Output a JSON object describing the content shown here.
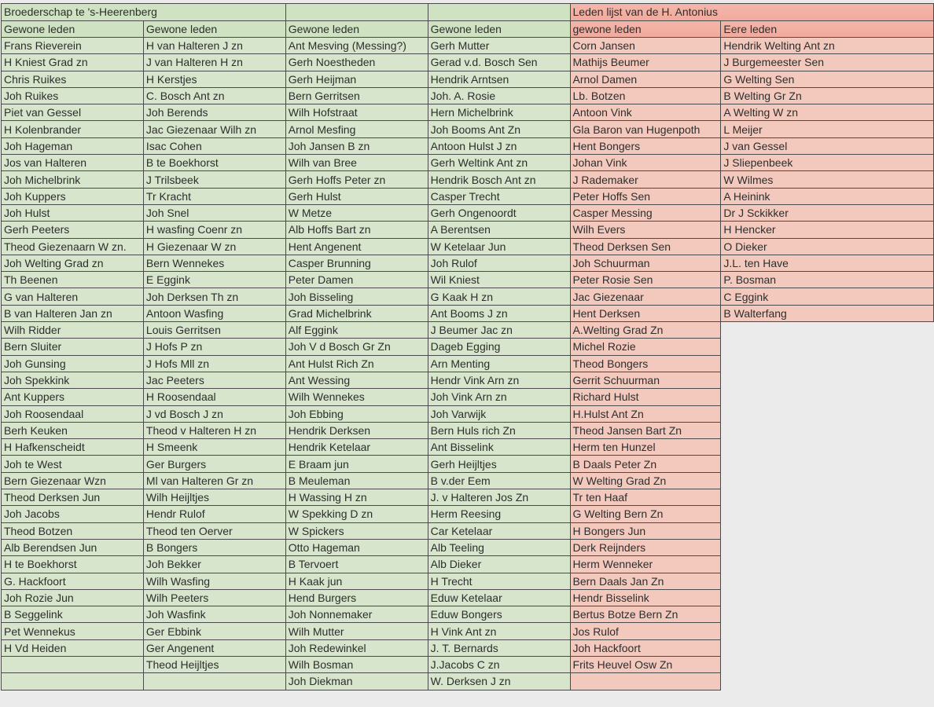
{
  "colors": {
    "green": "#d6e5cb",
    "pink": "#f3c9bd",
    "pink_header": "#f2b0a3",
    "border": "#4a4a4a"
  },
  "left_title": "Broederschap te 's-Heerenberg",
  "right_title": "Leden lijst van de H. Antonius",
  "headers": [
    "Gewone leden",
    "Gewone leden",
    "Gewone leden",
    "Gewone leden",
    "gewone leden",
    "Eere leden"
  ],
  "columns": [
    [
      "Frans Rieverein",
      "H Kniest Grad zn",
      "Chris Ruikes",
      "Joh Ruikes",
      "Piet van Gessel",
      "H Kolenbrander",
      "Joh Hageman",
      "Jos van Halteren",
      "Joh Michelbrink",
      "Joh Kuppers",
      "Joh Hulst",
      "Gerh Peeters",
      "Theod Giezenaarn W zn.",
      "Joh Welting Grad zn",
      "Th Beenen",
      "G van Halteren",
      "B van Halteren Jan zn",
      "Wilh Ridder",
      "Bern Sluiter",
      "Joh Gunsing",
      "Joh Spekkink",
      "Ant Kuppers",
      "Joh Roosendaal",
      "Berh Keuken",
      "H Hafkenscheidt",
      "Joh te West",
      "Bern Giezenaar Wzn",
      "Theod Derksen Jun",
      "Joh Jacobs",
      "Theod Botzen",
      "Alb Berendsen Jun",
      "H te Boekhorst",
      "G. Hackfoort",
      "Joh Rozie Jun",
      "B Seggelink",
      "Pet Wennekus",
      "H Vd Heiden",
      "",
      ""
    ],
    [
      "H van Halteren J zn",
      "J van Halteren H zn",
      "H Kerstjes",
      "C. Bosch Ant zn",
      "Joh Berends",
      "Jac Giezenaar Wilh zn",
      "Isac Cohen",
      "B te Boekhorst",
      "J Trilsbeek",
      "Tr Kracht",
      "Joh Snel",
      "H wasfing Coenr zn",
      "H Giezenaar W zn",
      "Bern Wennekes",
      "E Eggink",
      "Joh Derksen Th zn",
      "Antoon Wasfing",
      "Louis Gerritsen",
      "J Hofs P zn",
      "J Hofs  Mll zn",
      "Jac Peeters",
      "H Roosendaal",
      "J vd Bosch J zn",
      "Theod v Halteren H zn",
      "H Smeenk",
      "Ger Burgers",
      "Ml van Halteren Gr zn",
      "Wilh Heijltjes",
      "Hendr Rulof",
      "Theod ten Oerver",
      "B Bongers",
      "Joh Bekker",
      "Wilh Wasfing",
      "Wilh Peeters",
      "Joh Wasfink",
      "Ger Ebbink",
      "Ger Angenent",
      "Theod Heijltjes",
      ""
    ],
    [
      "Ant Mesving (Messing?)",
      "Gerh Noestheden",
      "Gerh Heijman",
      "Bern Gerritsen",
      "Wilh Hofstraat",
      "Arnol Mesfing",
      "Joh Jansen B zn",
      "Wilh van Bree",
      "Gerh Hoffs Peter zn",
      "Gerh Hulst",
      "W Metze",
      "Alb Hoffs Bart zn",
      "Hent Angenent",
      "Casper Brunning",
      "Peter Damen",
      "Joh Bisseling",
      "Grad Michelbrink",
      "Alf Eggink",
      "Joh V d Bosch Gr Zn",
      "Ant Hulst Rich Zn",
      "Ant Wessing",
      "Wilh Wennekes",
      "Joh Ebbing",
      "Hendrik Derksen",
      "Hendrik Ketelaar",
      "E Braam jun",
      "B Meuleman",
      "H Wassing H zn",
      "W Spekking D zn",
      "W Spickers",
      "Otto Hageman",
      "B Tervoert",
      "H Kaak jun",
      "Hend Burgers",
      "Joh Nonnemaker",
      "Wilh Mutter",
      "Joh Redewinkel",
      "Wilh Bosman",
      "Joh Diekman"
    ],
    [
      "Gerh Mutter",
      "Gerad v.d. Bosch Sen",
      "Hendrik Arntsen",
      "Joh. A. Rosie",
      "Hern Michelbrink",
      "Joh Booms Ant Zn",
      "Antoon Hulst J zn",
      "Gerh Weltink Ant zn",
      "Hendrik Bosch Ant zn",
      "Casper Trecht",
      "Gerh Ongenoordt",
      "A Berentsen",
      "W Ketelaar Jun",
      "Joh Rulof",
      "Wil Kniest",
      "G Kaak H zn",
      "Ant Booms J zn",
      "J Beumer Jac zn",
      "Dageb Egging",
      "Arn Menting",
      "Hendr Vink Arn zn",
      "Joh Vink Arn zn",
      "Joh Varwijk",
      "Bern Huls rich Zn",
      "Ant Bisselink",
      "Gerh Heijltjes",
      "B v.der Eem",
      "J. v Halteren Jos Zn",
      "Herm Reesing",
      "Car Ketelaar",
      "Alb Teeling",
      "Alb Dieker",
      "H Trecht",
      "Eduw Ketelaar",
      "Eduw Bongers",
      "H Vink Ant zn",
      "J. T. Bernards",
      "J.Jacobs C zn",
      "W. Derksen J zn"
    ],
    [
      "Corn Jansen",
      "Mathijs Beumer",
      "Arnol Damen",
      "Lb. Botzen",
      "Antoon Vink",
      "Gla Baron van Hugenpoth",
      "Hent Bongers",
      "Johan Vink",
      "J Rademaker",
      "Peter Hoffs Sen",
      "Casper Messing",
      "Wilh Evers",
      "Theod Derksen Sen",
      "Joh Schuurman",
      "Peter Rosie Sen",
      "Jac Giezenaar",
      "Hent Derksen",
      "A.Welting Grad Zn",
      "Michel Rozie",
      "Theod Bongers",
      "Gerrit Schuurman",
      "Richard Hulst",
      "H.Hulst Ant Zn",
      "Theod Jansen Bart Zn",
      "Herm ten Hunzel",
      "B Daals Peter Zn",
      "W Welting Grad Zn",
      "Tr ten Haaf",
      "G Welting Bern Zn",
      "H Bongers Jun",
      "Derk Reijnders",
      "Herm Wenneker",
      "Bern Daals Jan Zn",
      "Hendr Bisselink",
      "Bertus Botze Bern Zn",
      "Jos Rulof",
      "Joh Hackfoort",
      "Frits Heuvel Osw Zn",
      ""
    ],
    [
      "Hendrik Welting Ant zn",
      "J Burgemeester Sen",
      "G Welting Sen",
      "B Welting Gr Zn",
      "A Welting W zn",
      "L Meijer",
      "J van Gessel",
      "J Sliepenbeek",
      "W Wilmes",
      "A Heinink",
      "Dr J Sckikker",
      "H Hencker",
      "O Dieker",
      "J.L. ten Have",
      "P. Bosman",
      "C Eggink",
      "B Walterfang"
    ]
  ]
}
